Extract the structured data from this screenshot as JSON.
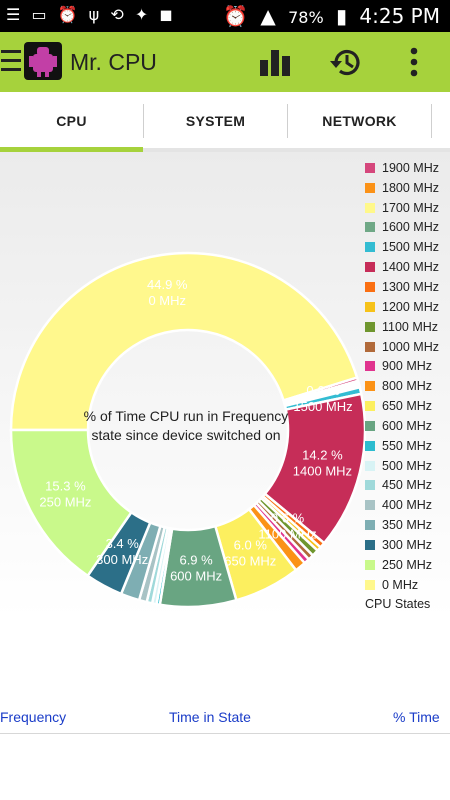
{
  "status_bar": {
    "left_icons": [
      "menu-icon",
      "sd-card-icon",
      "alarm-icon",
      "usb-icon",
      "sync-icon",
      "bird-icon",
      "app-notification-icon"
    ],
    "battery": "78%",
    "time": "4:25 PM"
  },
  "app_bar": {
    "title": "Mr. CPU",
    "actions": [
      "bar-chart-icon",
      "history-icon",
      "overflow-menu-icon"
    ]
  },
  "tabs": [
    "CPU",
    "SYSTEM",
    "NETWORK"
  ],
  "active_tab": "CPU",
  "chart_data": {
    "type": "pie",
    "title": "% of Time CPU run in Frequency state since device switched on",
    "legend_title": "CPU States",
    "legend_position": "right",
    "legend": [
      {
        "label": "1900 MHz",
        "color": "#d5477c"
      },
      {
        "label": "1800 MHz",
        "color": "#fb9217"
      },
      {
        "label": "1700 MHz",
        "color": "#fff88a"
      },
      {
        "label": "1600 MHz",
        "color": "#6fa886"
      },
      {
        "label": "1500 MHz",
        "color": "#33bcd2"
      },
      {
        "label": "1400 MHz",
        "color": "#c62d58"
      },
      {
        "label": "1300 MHz",
        "color": "#fa6f12"
      },
      {
        "label": "1200 MHz",
        "color": "#f6c21a"
      },
      {
        "label": "1100 MHz",
        "color": "#6f962e"
      },
      {
        "label": "1000 MHz",
        "color": "#b16a3a"
      },
      {
        "label": "900 MHz",
        "color": "#e0348e"
      },
      {
        "label": "800 MHz",
        "color": "#fb9216"
      },
      {
        "label": "650 MHz",
        "color": "#fcef5f"
      },
      {
        "label": "600 MHz",
        "color": "#69a582"
      },
      {
        "label": "550 MHz",
        "color": "#2dbccf"
      },
      {
        "label": "500 MHz",
        "color": "#d8f3f5"
      },
      {
        "label": "450 MHz",
        "color": "#9fd9da"
      },
      {
        "label": "400 MHz",
        "color": "#a8c3c5"
      },
      {
        "label": "350 MHz",
        "color": "#7eaeb3"
      },
      {
        "label": "300 MHz",
        "color": "#2c6f88"
      },
      {
        "label": "250 MHz",
        "color": "#c9f98b"
      },
      {
        "label": "0 MHz",
        "color": "#fff88d"
      }
    ],
    "slices": [
      {
        "label": "0 MHz",
        "value": 44.9,
        "pct_label": "44.9 %",
        "color": "#fff88d"
      },
      {
        "label": "1900 MHz",
        "value": 0.3,
        "pct_label": "",
        "color": "#d5477c"
      },
      {
        "label": "1800 MHz",
        "value": 0.2,
        "pct_label": "",
        "color": "#fb9217"
      },
      {
        "label": "1700 MHz",
        "value": 0.2,
        "pct_label": "",
        "color": "#fff88a"
      },
      {
        "label": "1600 MHz",
        "value": 0.2,
        "pct_label": "",
        "color": "#6fa886"
      },
      {
        "label": "1500 MHz",
        "value": 0.6,
        "pct_label": "0.6 %",
        "color": "#33bcd2"
      },
      {
        "label": "1400 MHz",
        "value": 14.2,
        "pct_label": "14.2 %",
        "color": "#c62d58"
      },
      {
        "label": "1300 MHz",
        "value": 0.5,
        "pct_label": "",
        "color": "#fa6f12"
      },
      {
        "label": "1200 MHz",
        "value": 0.4,
        "pct_label": "",
        "color": "#f6c21a"
      },
      {
        "label": "1100 MHz",
        "value": 0.6,
        "pct_label": "0.6 %",
        "color": "#6f962e"
      },
      {
        "label": "1000 MHz",
        "value": 0.5,
        "pct_label": "",
        "color": "#b16a3a"
      },
      {
        "label": "900 MHz",
        "value": 0.5,
        "pct_label": "",
        "color": "#e0348e"
      },
      {
        "label": "800 MHz",
        "value": 1.0,
        "pct_label": "",
        "color": "#fb9216"
      },
      {
        "label": "650 MHz",
        "value": 6.0,
        "pct_label": "6.0 %",
        "color": "#fcef5f"
      },
      {
        "label": "600 MHz",
        "value": 6.9,
        "pct_label": "6.9 %",
        "color": "#69a582"
      },
      {
        "label": "550 MHz",
        "value": 0.3,
        "pct_label": "",
        "color": "#2dbccf"
      },
      {
        "label": "500 MHz",
        "value": 0.4,
        "pct_label": "",
        "color": "#d8f3f5"
      },
      {
        "label": "450 MHz",
        "value": 0.5,
        "pct_label": "",
        "color": "#9fd9da"
      },
      {
        "label": "400 MHz",
        "value": 0.7,
        "pct_label": "",
        "color": "#a8c3c5"
      },
      {
        "label": "350 MHz",
        "value": 1.7,
        "pct_label": "",
        "color": "#7eaeb3"
      },
      {
        "label": "300 MHz",
        "value": 3.4,
        "pct_label": "3.4 %",
        "color": "#2c6f88"
      },
      {
        "label": "250 MHz",
        "value": 15.3,
        "pct_label": "15.3 %",
        "color": "#c9f98b"
      }
    ]
  },
  "table": {
    "headers": [
      "Frequency",
      "Time in State",
      "% Time"
    ]
  }
}
